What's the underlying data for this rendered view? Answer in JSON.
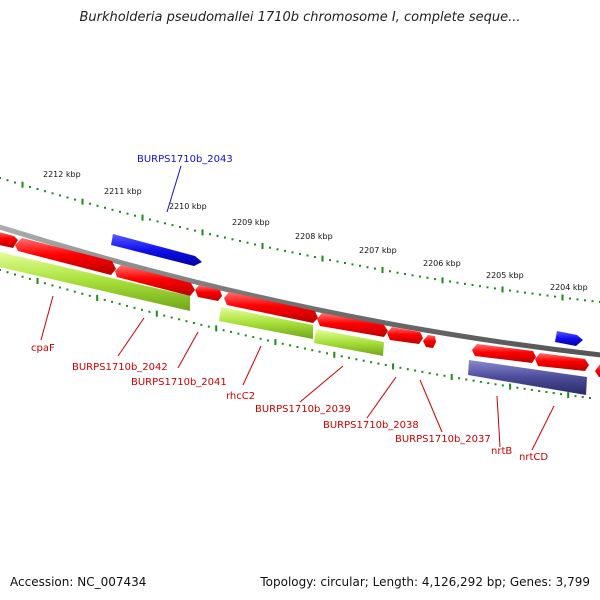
{
  "header": {
    "title": "Burkholderia pseudomallei 1710b chromosome I, complete seque..."
  },
  "footer": {
    "accession": "Accession: NC_007434",
    "summary": "Topology: circular; Length: 4,126,292 bp; Genes: 3,799"
  },
  "ruler": {
    "tick_labels": [
      "2212 kbp",
      "2211 kbp",
      "2210 kbp",
      "2209 kbp",
      "2208 kbp",
      "2207 kbp",
      "2206 kbp",
      "2205 kbp",
      "2204 kbp"
    ]
  },
  "gene_labels": [
    {
      "text": "BURPS1710b_2043",
      "color": "#1111cc"
    },
    {
      "text": "cpaF",
      "color": "#cc0000"
    },
    {
      "text": "BURPS1710b_2042",
      "color": "#cc0000"
    },
    {
      "text": "BURPS1710b_2041",
      "color": "#cc0000"
    },
    {
      "text": "rhcC2",
      "color": "#cc0000"
    },
    {
      "text": "BURPS1710b_2039",
      "color": "#cc0000"
    },
    {
      "text": "BURPS1710b_2038",
      "color": "#cc0000"
    },
    {
      "text": "BURPS1710b_2037",
      "color": "#cc0000"
    },
    {
      "text": "nrtB",
      "color": "#cc0000"
    },
    {
      "text": "nrtCD",
      "color": "#cc0000"
    }
  ],
  "colors": {
    "backbone": "#808080",
    "cds": "#ff0000",
    "gc_green": "#99dd22",
    "blue_feature": "#1010ee",
    "navy_feature": "#4b4b9a",
    "tick_green": "#1a8a1a"
  }
}
